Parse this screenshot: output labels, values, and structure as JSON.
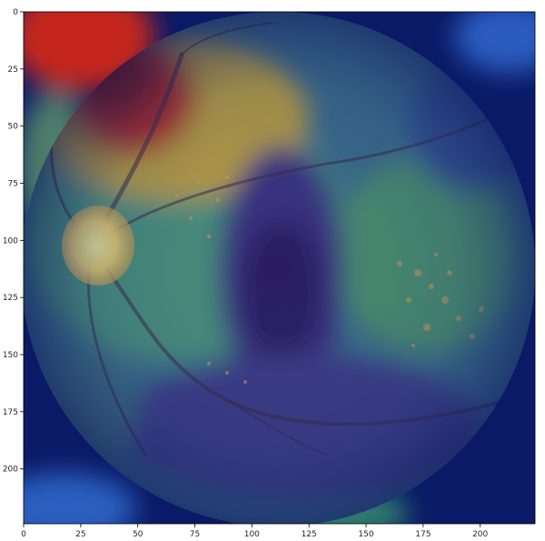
{
  "figure": {
    "x_axis": {
      "range": [
        0,
        224
      ],
      "ticks": [
        0,
        25,
        50,
        75,
        100,
        125,
        150,
        175,
        200
      ],
      "tick_labels": [
        "0",
        "25",
        "50",
        "75",
        "100",
        "125",
        "150",
        "175",
        "200"
      ]
    },
    "y_axis": {
      "range": [
        0,
        224
      ],
      "inverted": true,
      "ticks": [
        0,
        25,
        50,
        75,
        100,
        125,
        150,
        175,
        200
      ],
      "tick_labels": [
        "0",
        "25",
        "50",
        "75",
        "100",
        "125",
        "150",
        "175",
        "200"
      ]
    },
    "image": {
      "content": "retinal fundus photograph with heatmap overlay",
      "colormap": "jet",
      "overlay_colors": {
        "low": "#08125c",
        "mid_low": "#2a3f8c",
        "mid": "#3e8f8a",
        "mid_high": "#c8b032",
        "high": "#b31b0e"
      }
    }
  }
}
